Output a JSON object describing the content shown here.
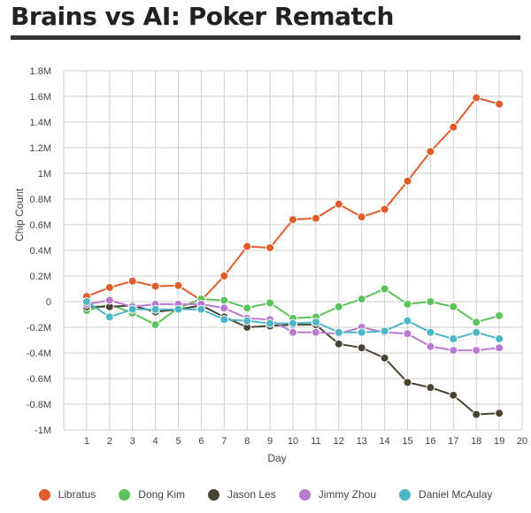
{
  "page": {
    "title": "Brains vs AI: Poker Rematch"
  },
  "chart_data": {
    "type": "line",
    "title": "Brains vs AI: Poker Rematch",
    "xlabel": "Day",
    "ylabel": "Chip Count",
    "x": [
      1,
      2,
      3,
      4,
      5,
      6,
      7,
      8,
      9,
      10,
      11,
      12,
      13,
      14,
      15,
      16,
      17,
      18,
      19
    ],
    "x_ticks": [
      "1",
      "2",
      "3",
      "4",
      "5",
      "6",
      "7",
      "8",
      "9",
      "10",
      "11",
      "12",
      "13",
      "14",
      "15",
      "16",
      "17",
      "18",
      "19",
      "20"
    ],
    "x_range": [
      0,
      20
    ],
    "y_range": [
      -1000000,
      1800000
    ],
    "y_ticks": [
      {
        "value": 1800000,
        "label": "1.8M"
      },
      {
        "value": 1600000,
        "label": "1.6M"
      },
      {
        "value": 1400000,
        "label": "1.4M"
      },
      {
        "value": 1200000,
        "label": "1.2M"
      },
      {
        "value": 1000000,
        "label": "1M"
      },
      {
        "value": 800000,
        "label": "0.8M"
      },
      {
        "value": 600000,
        "label": "0.6M"
      },
      {
        "value": 400000,
        "label": "0.4M"
      },
      {
        "value": 200000,
        "label": "0.2M"
      },
      {
        "value": 0,
        "label": "0"
      },
      {
        "value": -200000,
        "label": "-0.2M"
      },
      {
        "value": -400000,
        "label": "-0.4M"
      },
      {
        "value": -600000,
        "label": "-0.6M"
      },
      {
        "value": -800000,
        "label": "-0.8M"
      },
      {
        "value": -1000000,
        "label": "-1M"
      }
    ],
    "grid": true,
    "legend_position": "bottom",
    "series": [
      {
        "name": "Libratus",
        "color": "#e05c2a",
        "values": [
          40000,
          110000,
          160000,
          120000,
          125000,
          10000,
          200000,
          430000,
          420000,
          640000,
          650000,
          760000,
          660000,
          720000,
          940000,
          1170000,
          1360000,
          1590000,
          1540000
        ]
      },
      {
        "name": "Dong Kim",
        "color": "#5cc25c",
        "values": [
          -70000,
          -20000,
          -90000,
          -180000,
          -50000,
          20000,
          10000,
          -50000,
          -10000,
          -130000,
          -120000,
          -40000,
          20000,
          100000,
          -20000,
          0,
          -40000,
          -160000,
          -110000
        ]
      },
      {
        "name": "Jason Les",
        "color": "#4a4434",
        "values": [
          -40000,
          -40000,
          -30000,
          -80000,
          -60000,
          -30000,
          -120000,
          -200000,
          -190000,
          -180000,
          -180000,
          -330000,
          -360000,
          -440000,
          -630000,
          -670000,
          -730000,
          -880000,
          -870000
        ]
      },
      {
        "name": "Jimmy Zhou",
        "color": "#b87bd0",
        "values": [
          -20000,
          10000,
          -40000,
          -20000,
          -20000,
          -20000,
          -50000,
          -130000,
          -140000,
          -240000,
          -240000,
          -250000,
          -200000,
          -240000,
          -250000,
          -350000,
          -380000,
          -380000,
          -360000
        ]
      },
      {
        "name": "Daniel McAulay",
        "color": "#4db6c4",
        "values": [
          0,
          -120000,
          -60000,
          -60000,
          -60000,
          -60000,
          -140000,
          -150000,
          -170000,
          -170000,
          -160000,
          -240000,
          -240000,
          -230000,
          -150000,
          -240000,
          -290000,
          -240000,
          -290000
        ]
      }
    ]
  }
}
